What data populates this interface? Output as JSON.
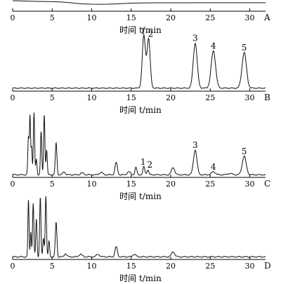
{
  "chart_data": [
    {
      "type": "line",
      "panel_label": "A",
      "xlabel": "时间 t/min",
      "xlim": [
        0,
        32
      ],
      "xticks": [
        0,
        5,
        10,
        15,
        20,
        25,
        30
      ],
      "series": [
        {
          "x": [
            0,
            1,
            2,
            3,
            4,
            5,
            6,
            7,
            8,
            9,
            10,
            11,
            12,
            13,
            14,
            15,
            16,
            18,
            20,
            24,
            28,
            32
          ],
          "y": [
            0.93,
            0.91,
            0.88,
            0.86,
            0.85,
            0.83,
            0.8,
            0.74,
            0.66,
            0.6,
            0.57,
            0.56,
            0.57,
            0.6,
            0.64,
            0.68,
            0.7,
            0.71,
            0.71,
            0.72,
            0.72,
            0.72
          ]
        }
      ]
    },
    {
      "type": "line",
      "panel_label": "B",
      "xlabel": "时间 t/min",
      "xlim": [
        0,
        32
      ],
      "xticks": [
        0,
        5,
        10,
        15,
        20,
        25,
        30
      ],
      "baseline": 0.03,
      "peaks": [
        {
          "label": "1",
          "t": 16.6,
          "h": 0.95,
          "w": 0.2
        },
        {
          "label": "2",
          "t": 17.2,
          "h": 0.9,
          "w": 0.2
        },
        {
          "label": "3",
          "t": 23.1,
          "h": 0.82,
          "w": 0.25
        },
        {
          "label": "4",
          "t": 25.4,
          "h": 0.68,
          "w": 0.28
        },
        {
          "label": "5",
          "t": 29.3,
          "h": 0.65,
          "w": 0.28
        }
      ]
    },
    {
      "type": "line",
      "panel_label": "C",
      "xlabel": "时间 t/min",
      "xlim": [
        0,
        32
      ],
      "xticks": [
        0,
        5,
        10,
        15,
        20,
        25,
        30
      ],
      "baseline": 0.02,
      "peaks": [
        {
          "t": 2.0,
          "h": 0.6,
          "w": 0.08
        },
        {
          "t": 2.2,
          "h": 0.95,
          "w": 0.07
        },
        {
          "t": 2.4,
          "h": 0.45,
          "w": 0.07
        },
        {
          "t": 2.7,
          "h": 1.0,
          "w": 0.08
        },
        {
          "t": 3.0,
          "h": 0.25,
          "w": 0.08
        },
        {
          "t": 3.6,
          "h": 0.7,
          "w": 0.08
        },
        {
          "t": 4.0,
          "h": 0.98,
          "w": 0.08
        },
        {
          "t": 4.3,
          "h": 0.4,
          "w": 0.08
        },
        {
          "t": 5.5,
          "h": 0.52,
          "w": 0.1
        },
        {
          "t": 6.5,
          "h": 0.05,
          "w": 0.15
        },
        {
          "t": 8.8,
          "h": 0.03,
          "w": 0.2
        },
        {
          "t": 11.2,
          "h": 0.04,
          "w": 0.2
        },
        {
          "t": 13.1,
          "h": 0.2,
          "w": 0.15
        },
        {
          "t": 14.7,
          "h": 0.05,
          "w": 0.2
        },
        {
          "t": 15.6,
          "h": 0.12,
          "w": 0.12
        },
        {
          "label": "1",
          "t": 16.6,
          "h": 0.13,
          "w": 0.12
        },
        {
          "label": "2",
          "t": 17.1,
          "h": 0.08,
          "w": 0.12
        },
        {
          "t": 20.3,
          "h": 0.12,
          "w": 0.2
        },
        {
          "label": "3",
          "t": 23.1,
          "h": 0.4,
          "w": 0.22
        },
        {
          "label": "4",
          "t": 25.4,
          "h": 0.05,
          "w": 0.25
        },
        {
          "t": 27.5,
          "h": 0.02,
          "w": 0.3
        },
        {
          "label": "5",
          "t": 29.3,
          "h": 0.3,
          "w": 0.25
        }
      ]
    },
    {
      "type": "line",
      "panel_label": "D",
      "xlabel": "时间 t/min",
      "xlim": [
        0,
        32
      ],
      "xticks": [
        0,
        5,
        10,
        15,
        20,
        25,
        30
      ],
      "baseline": 0.02,
      "peaks": [
        {
          "t": 2.0,
          "h": 0.9,
          "w": 0.07
        },
        {
          "t": 2.3,
          "h": 0.4,
          "w": 0.07
        },
        {
          "t": 2.6,
          "h": 0.85,
          "w": 0.08
        },
        {
          "t": 3.0,
          "h": 0.6,
          "w": 0.08
        },
        {
          "t": 3.5,
          "h": 0.95,
          "w": 0.08
        },
        {
          "t": 3.9,
          "h": 0.3,
          "w": 0.08
        },
        {
          "t": 4.2,
          "h": 0.97,
          "w": 0.08
        },
        {
          "t": 4.6,
          "h": 0.25,
          "w": 0.08
        },
        {
          "t": 5.5,
          "h": 0.55,
          "w": 0.1
        },
        {
          "t": 6.7,
          "h": 0.05,
          "w": 0.15
        },
        {
          "t": 8.6,
          "h": 0.04,
          "w": 0.2
        },
        {
          "t": 10.8,
          "h": 0.04,
          "w": 0.2
        },
        {
          "t": 13.1,
          "h": 0.16,
          "w": 0.15
        },
        {
          "t": 15.4,
          "h": 0.04,
          "w": 0.2
        },
        {
          "t": 20.3,
          "h": 0.08,
          "w": 0.2
        }
      ]
    }
  ]
}
